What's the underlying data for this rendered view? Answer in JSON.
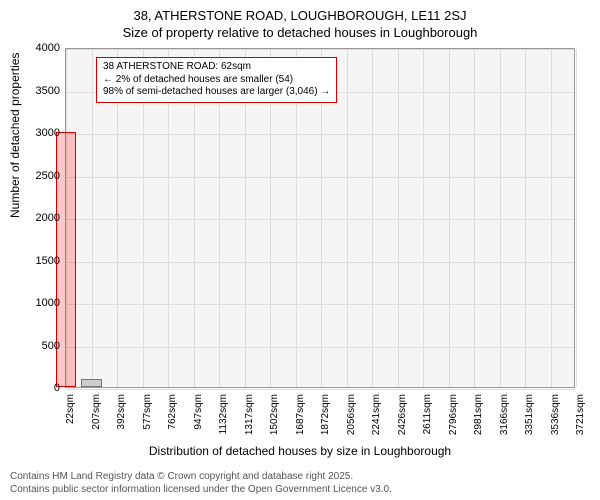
{
  "title_main": "38, ATHERSTONE ROAD, LOUGHBOROUGH, LE11 2SJ",
  "title_sub": "Size of property relative to detached houses in Loughborough",
  "ylabel": "Number of detached properties",
  "xlabel": "Distribution of detached houses by size in Loughborough",
  "chart": {
    "type": "bar",
    "background_color": "#f5f5f5",
    "grid_color": "#dddddd",
    "border_color": "#999999",
    "bar_fill": "#cccccc",
    "bar_outline": "#777777",
    "highlight_fill": "rgba(255,0,0,0.22)",
    "highlight_outline": "#cc0000",
    "ylim": [
      0,
      4000
    ],
    "yticks": [
      0,
      500,
      1000,
      1500,
      2000,
      2500,
      3000,
      3500,
      4000
    ],
    "xtick_labels": [
      "22sqm",
      "207sqm",
      "392sqm",
      "577sqm",
      "762sqm",
      "947sqm",
      "1132sqm",
      "1317sqm",
      "1502sqm",
      "1687sqm",
      "1872sqm",
      "2056sqm",
      "2241sqm",
      "2426sqm",
      "2611sqm",
      "2796sqm",
      "2981sqm",
      "3166sqm",
      "3351sqm",
      "3536sqm",
      "3721sqm"
    ],
    "bars": [
      {
        "x_index": 0,
        "y": 3000,
        "highlighted": true
      },
      {
        "x_index": 1,
        "y": 100,
        "highlighted": false
      }
    ],
    "xtick_fontsize": 10,
    "ytick_fontsize": 11,
    "label_fontsize": 12,
    "title_fontsize": 13
  },
  "callout": {
    "line1": "38 ATHERSTONE ROAD: 62sqm",
    "line2": "← 2% of detached houses are smaller (54)",
    "line3": "98% of semi-detached houses are larger (3,046) →",
    "border_color": "#cc0000"
  },
  "footer": {
    "line1": "Contains HM Land Registry data © Crown copyright and database right 2025.",
    "line2": "Contains public sector information licensed under the Open Government Licence v3.0."
  }
}
